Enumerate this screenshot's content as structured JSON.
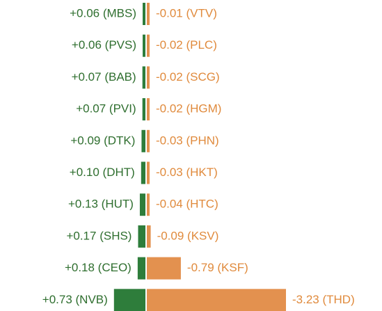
{
  "chart_data": {
    "type": "diverging_bar",
    "series": [
      {
        "color": "#2e7d3b",
        "label_color": "#2e6e2e",
        "values": [
          0.06,
          0.06,
          0.07,
          0.07,
          0.09,
          0.1,
          0.13,
          0.17,
          0.18,
          0.73
        ],
        "value_labels": [
          "+0.06 (MBS)",
          "+0.06 (PVS)",
          "+0.07 (BAB)",
          "+0.07 (PVI)",
          "+0.09 (DTK)",
          "+0.10 (DHT)",
          "+0.13 (HUT)",
          "+0.17 (SHS)",
          "+0.18 (CEO)",
          "+0.73 (NVB)"
        ]
      },
      {
        "color": "#e3914f",
        "label_color": "#e08a3c",
        "values": [
          -0.01,
          -0.02,
          -0.02,
          -0.02,
          -0.03,
          -0.03,
          -0.04,
          -0.09,
          -0.79,
          -3.23
        ],
        "value_labels": [
          "-0.01 (VTV)",
          "-0.02 (PLC)",
          "-0.02 (SCG)",
          "-0.02 (HGM)",
          "-0.03 (PHN)",
          "-0.03 (HKT)",
          "-0.04 (HTC)",
          "-0.09 (KSV)",
          "-0.79 (KSF)",
          "-3.23 (THD)"
        ]
      }
    ]
  }
}
